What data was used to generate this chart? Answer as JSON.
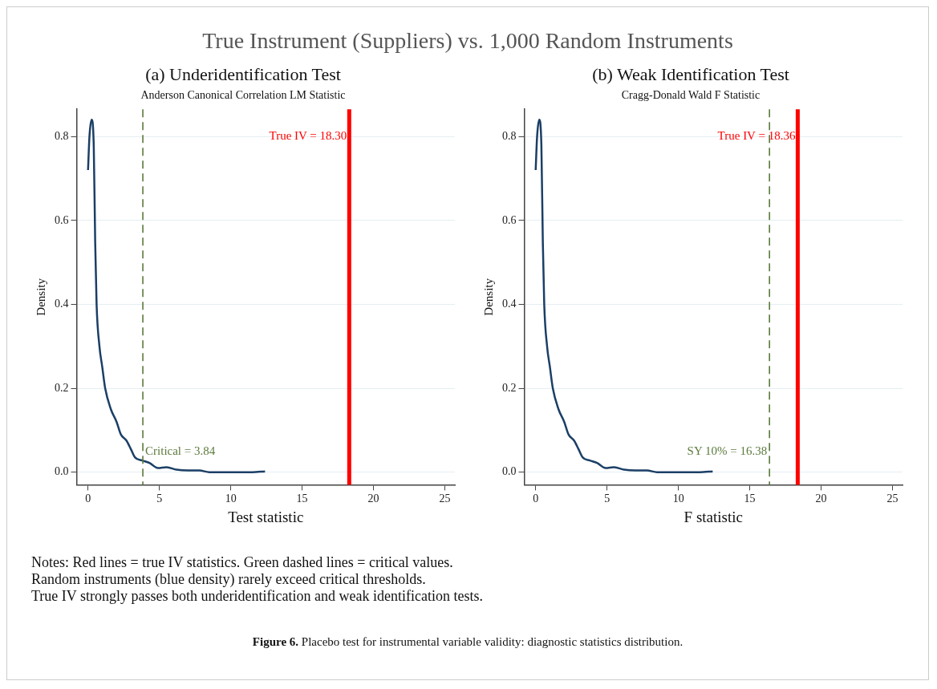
{
  "chart_data": [
    {
      "type": "line",
      "title": "(a) Underidentification Test",
      "subtitle": "Anderson Canonical Correlation LM Statistic",
      "xlabel": "Test statistic",
      "ylabel": "Density",
      "annotations": [
        "True Instrument (Suppliers) vs. 1,000 Random Instruments",
        "Notes: Red lines = true IV statistics. Green dashed lines = critical values.",
        "Random instruments (blue density) rarely exceed critical thresholds.",
        "True IV strongly passes both underidentification and weak identification tests.",
        "Figure 6.",
        "Placebo test for instrumental variable validity: diagnostic statistics distribution."
      ],
      "x": [
        0,
        0.1,
        0.25,
        0.4,
        0.5,
        0.6,
        0.8,
        1.0,
        1.2,
        1.6,
        2.0,
        2.3,
        2.7,
        3.0,
        3.3,
        3.8,
        4.3,
        4.9,
        5.5,
        6.2,
        7.0,
        7.8,
        8.5,
        10.0,
        11.5,
        12.4
      ],
      "series": [
        {
          "color": "#1b3f66",
          "values": [
            0.72,
            0.8,
            0.84,
            0.78,
            0.55,
            0.4,
            0.3,
            0.25,
            0.2,
            0.15,
            0.12,
            0.09,
            0.075,
            0.055,
            0.035,
            0.028,
            0.022,
            0.01,
            0.012,
            0.006,
            0.004,
            0.004,
            0.0,
            0.0,
            0.0,
            0.002
          ]
        }
      ],
      "ref_lines": [
        {
          "axis": "x",
          "value": 3.84,
          "label": "Critical = 3.84",
          "color": "#5b7a3c",
          "line_style": "dashed"
        },
        {
          "axis": "x",
          "value": 18.3,
          "label": "True IV = 18.30",
          "color": "#ff0000",
          "line_style": "solid"
        }
      ],
      "xlim": [
        -0.8,
        25.7
      ],
      "xticks": [
        0,
        5,
        10,
        15,
        20,
        25
      ],
      "ylim": [
        -0.03,
        0.865
      ],
      "yticks": [
        {
          "value": 0,
          "label": "0.0"
        },
        0.2,
        0.4,
        0.6,
        0.8
      ],
      "grid": "y",
      "legend": false,
      "marker": "none",
      "line_style": "solid"
    },
    {
      "type": "line",
      "title": "(b) Weak Identification Test",
      "subtitle": "Cragg-Donald Wald F Statistic",
      "xlabel": "F statistic",
      "ylabel": "Density",
      "x": [
        0,
        0.1,
        0.25,
        0.4,
        0.5,
        0.6,
        0.8,
        1.0,
        1.2,
        1.6,
        2.0,
        2.3,
        2.7,
        3.0,
        3.3,
        3.8,
        4.3,
        4.9,
        5.5,
        6.2,
        7.0,
        7.8,
        8.5,
        10.0,
        11.5,
        12.4
      ],
      "series": [
        {
          "color": "#1b3f66",
          "values": [
            0.72,
            0.8,
            0.84,
            0.78,
            0.55,
            0.4,
            0.3,
            0.25,
            0.2,
            0.15,
            0.12,
            0.09,
            0.075,
            0.055,
            0.035,
            0.028,
            0.022,
            0.01,
            0.012,
            0.006,
            0.004,
            0.004,
            0.0,
            0.0,
            0.0,
            0.002
          ]
        }
      ],
      "ref_lines": [
        {
          "axis": "x",
          "value": 16.38,
          "label": "SY 10% = 16.38",
          "color": "#5b7a3c",
          "line_style": "dashed"
        },
        {
          "axis": "x",
          "value": 18.36,
          "label": "True IV = 18.36",
          "color": "#ff0000",
          "line_style": "solid"
        }
      ],
      "xlim": [
        -0.8,
        25.7
      ],
      "xticks": [
        0,
        5,
        10,
        15,
        20,
        25
      ],
      "ylim": [
        -0.03,
        0.865
      ],
      "yticks": [
        {
          "value": 0,
          "label": "0.0"
        },
        0.2,
        0.4,
        0.6,
        0.8
      ],
      "grid": "y",
      "legend": false,
      "marker": "none",
      "line_style": "solid"
    }
  ]
}
